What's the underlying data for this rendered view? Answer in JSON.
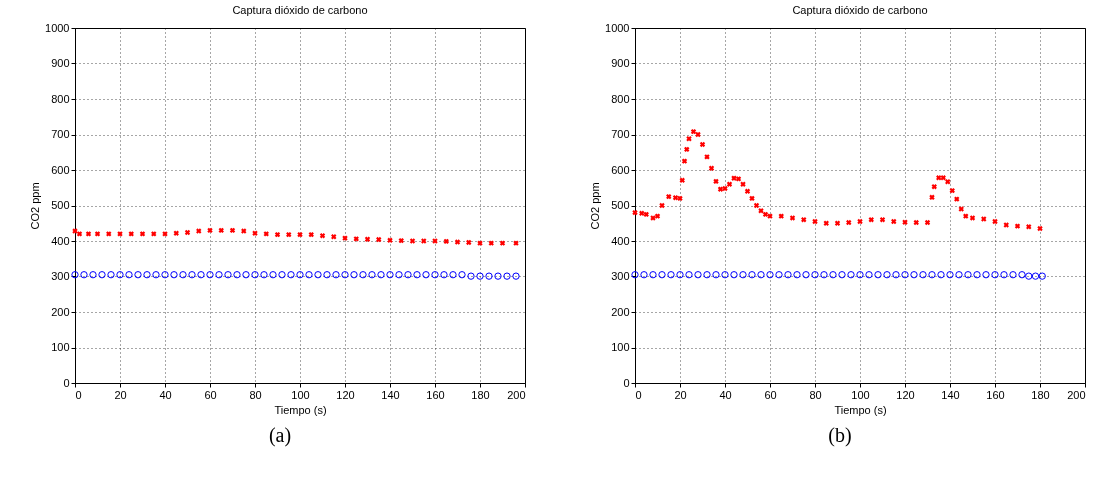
{
  "chart_data": [
    {
      "type": "scatter",
      "title": "Captura dióxido de carbono",
      "xlabel": "Tiempo (s)",
      "ylabel": "CO2 ppm",
      "annotations": [
        "(a)"
      ],
      "xlim": [
        0,
        200
      ],
      "ylim": [
        0,
        1000
      ],
      "xticks": [
        0,
        20,
        40,
        60,
        80,
        100,
        120,
        140,
        160,
        180,
        200
      ],
      "yticks": [
        0,
        100,
        200,
        300,
        400,
        500,
        600,
        700,
        800,
        900,
        1000
      ],
      "grid": true,
      "series": [
        {
          "color": "#ff0000",
          "marker": "cross",
          "x": [
            0,
            2,
            6,
            10,
            15,
            20,
            25,
            30,
            35,
            40,
            45,
            50,
            55,
            60,
            65,
            70,
            75,
            80,
            85,
            90,
            95,
            100,
            105,
            110,
            115,
            120,
            125,
            130,
            135,
            140,
            145,
            150,
            155,
            160,
            165,
            170,
            175,
            180,
            185,
            190,
            196
          ],
          "values": [
            428,
            420,
            420,
            420,
            420,
            420,
            420,
            420,
            420,
            420,
            422,
            424,
            428,
            430,
            430,
            430,
            428,
            422,
            420,
            418,
            418,
            418,
            418,
            415,
            412,
            408,
            406,
            405,
            404,
            402,
            401,
            400,
            400,
            400,
            399,
            397,
            396,
            394,
            394,
            394,
            394
          ]
        },
        {
          "color": "#0000ff",
          "marker": "circle",
          "x": [
            0,
            4,
            8,
            12,
            16,
            20,
            24,
            28,
            32,
            36,
            40,
            44,
            48,
            52,
            56,
            60,
            64,
            68,
            72,
            76,
            80,
            84,
            88,
            92,
            96,
            100,
            104,
            108,
            112,
            116,
            120,
            124,
            128,
            132,
            136,
            140,
            144,
            148,
            152,
            156,
            160,
            164,
            168,
            172,
            176,
            180,
            184,
            188,
            192,
            196
          ],
          "values": [
            305,
            305,
            305,
            305,
            305,
            305,
            305,
            305,
            305,
            305,
            305,
            305,
            305,
            305,
            305,
            305,
            305,
            305,
            305,
            305,
            305,
            305,
            305,
            305,
            305,
            305,
            305,
            305,
            305,
            305,
            305,
            305,
            305,
            305,
            305,
            305,
            305,
            305,
            305,
            305,
            305,
            305,
            305,
            305,
            301,
            301,
            301,
            301,
            301,
            301
          ]
        }
      ]
    },
    {
      "type": "scatter",
      "title": "Captura dióxido de carbono",
      "xlabel": "Tiempo (s)",
      "ylabel": "CO2 ppm",
      "annotations": [
        "(b)"
      ],
      "xlim": [
        0,
        200
      ],
      "ylim": [
        0,
        1000
      ],
      "xticks": [
        0,
        20,
        40,
        60,
        80,
        100,
        120,
        140,
        160,
        180,
        200
      ],
      "yticks": [
        0,
        100,
        200,
        300,
        400,
        500,
        600,
        700,
        800,
        900,
        1000
      ],
      "grid": true,
      "series": [
        {
          "color": "#ff0000",
          "marker": "cross",
          "x": [
            0,
            3,
            5,
            8,
            10,
            12,
            15,
            18,
            20,
            21,
            22,
            23,
            24,
            26,
            28,
            30,
            32,
            34,
            36,
            38,
            40,
            42,
            44,
            46,
            48,
            50,
            52,
            54,
            56,
            58,
            60,
            65,
            70,
            75,
            80,
            85,
            90,
            95,
            100,
            105,
            110,
            115,
            120,
            125,
            130,
            132,
            133,
            135,
            137,
            139,
            141,
            143,
            145,
            147,
            150,
            155,
            160,
            165,
            170,
            175,
            180
          ],
          "values": [
            480,
            478,
            475,
            465,
            470,
            500,
            525,
            522,
            520,
            571,
            625,
            658,
            688,
            708,
            700,
            672,
            637,
            605,
            568,
            546,
            548,
            560,
            577,
            575,
            560,
            540,
            520,
            500,
            485,
            475,
            470,
            470,
            465,
            460,
            455,
            450,
            450,
            452,
            455,
            460,
            460,
            455,
            453,
            452,
            452,
            523,
            553,
            578,
            578,
            567,
            542,
            518,
            490,
            470,
            465,
            462,
            455,
            445,
            442,
            440,
            435
          ]
        },
        {
          "color": "#0000ff",
          "marker": "circle",
          "x": [
            0,
            4,
            8,
            12,
            16,
            20,
            24,
            28,
            32,
            36,
            40,
            44,
            48,
            52,
            56,
            60,
            64,
            68,
            72,
            76,
            80,
            84,
            88,
            92,
            96,
            100,
            104,
            108,
            112,
            116,
            120,
            124,
            128,
            132,
            136,
            140,
            144,
            148,
            152,
            156,
            160,
            164,
            168,
            172,
            175,
            178,
            181
          ],
          "values": [
            305,
            305,
            305,
            305,
            305,
            305,
            305,
            305,
            305,
            305,
            305,
            305,
            305,
            305,
            305,
            305,
            305,
            305,
            305,
            305,
            305,
            305,
            305,
            305,
            305,
            305,
            305,
            305,
            305,
            305,
            305,
            305,
            305,
            305,
            305,
            305,
            305,
            305,
            305,
            305,
            305,
            305,
            305,
            305,
            301,
            301,
            301
          ]
        }
      ]
    }
  ]
}
